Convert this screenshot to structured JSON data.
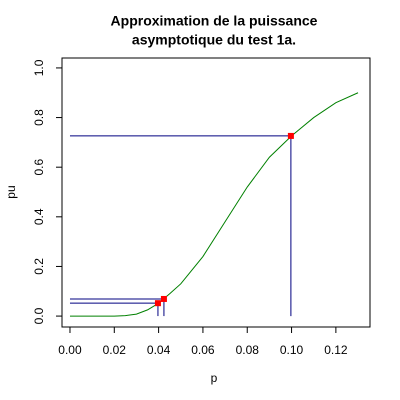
{
  "chart_data": {
    "type": "line",
    "title": [
      "Approximation de la puissance",
      "asymptotique du test 1a."
    ],
    "x_label": "p",
    "y_label": "pu",
    "xlim": [
      -0.0036,
      0.1354
    ],
    "ylim": [
      -0.044,
      1.04
    ],
    "xticks": [
      {
        "value": 0,
        "label": "0.00"
      },
      {
        "value": 0.02,
        "label": "0.02"
      },
      {
        "value": 0.04,
        "label": "0.04"
      },
      {
        "value": 0.06,
        "label": "0.06"
      },
      {
        "value": 0.08,
        "label": "0.08"
      },
      {
        "value": 0.1,
        "label": "0.10"
      },
      {
        "value": 0.12,
        "label": "0.12"
      }
    ],
    "yticks": [
      {
        "value": 0,
        "label": "0.0"
      },
      0.2,
      0.4,
      0.6,
      0.8,
      {
        "value": 1,
        "label": "1.0"
      }
    ],
    "series": [
      {
        "color": "#008000",
        "x": [
          0,
          0.01,
          0.02,
          0.025,
          0.03,
          0.035,
          0.04,
          0.045,
          0.05,
          0.06,
          0.07,
          0.08,
          0.09,
          0.1,
          0.11,
          0.12,
          0.13
        ],
        "values": [
          0,
          0,
          0,
          0.002,
          0.008,
          0.025,
          0.052,
          0.09,
          0.13,
          0.24,
          0.38,
          0.52,
          0.64,
          0.726,
          0.8,
          0.86,
          0.9
        ]
      },
      {
        "type": "scatter",
        "color": "#ff0000",
        "guide_color": "#000080",
        "x": [
          0.0397,
          0.0424,
          0.0997
        ],
        "values": [
          0.052,
          0.069,
          0.726
        ]
      }
    ]
  }
}
